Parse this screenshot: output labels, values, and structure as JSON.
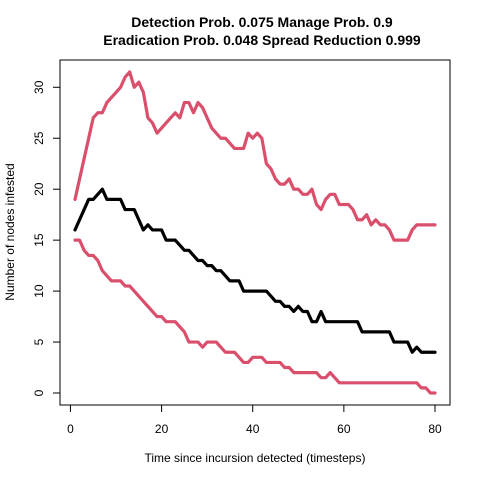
{
  "chart_data": {
    "type": "line",
    "title": [
      "Detection Prob. 0.075 Manage Prob. 0.9",
      "Eradication Prob. 0.048 Spread Reduction 0.999"
    ],
    "xlabel": "Time since incursion detected (timesteps)",
    "ylabel": "Number of nodes infested",
    "xlim": [
      1,
      80
    ],
    "ylim": [
      0,
      31.5
    ],
    "xticks": [
      0,
      20,
      40,
      60,
      80
    ],
    "yticks": [
      0,
      5,
      10,
      15,
      20,
      25,
      30
    ],
    "grid": false,
    "legend": "none",
    "series": [
      {
        "color": "#000000",
        "values": [
          16,
          17,
          18,
          19,
          19,
          19.5,
          20,
          19,
          19,
          19,
          19,
          18,
          18,
          18,
          17,
          16,
          16.5,
          16,
          16,
          16,
          15,
          15,
          15,
          14.5,
          14,
          14,
          13.5,
          13,
          13,
          12.5,
          12.5,
          12,
          12,
          11.5,
          11,
          11,
          11,
          10,
          10,
          10,
          10,
          10,
          10,
          9.5,
          9,
          9,
          8.5,
          8.5,
          8,
          8.5,
          8,
          8,
          7,
          7,
          8,
          7,
          7,
          7,
          7,
          7,
          7,
          7,
          7,
          6,
          6,
          6,
          6,
          6,
          6,
          6,
          5,
          5,
          5,
          5,
          4,
          4.5,
          4,
          4,
          4,
          4
        ]
      },
      {
        "color": "#D94F6C",
        "values": [
          19,
          21,
          23,
          25,
          27,
          27.5,
          27.5,
          28.5,
          29,
          29.5,
          30,
          31,
          31.5,
          30,
          30.5,
          29.5,
          27,
          26.5,
          25.5,
          26,
          26.5,
          27,
          27.5,
          27,
          28.5,
          28.5,
          27.5,
          28.5,
          28,
          27,
          26,
          25.5,
          25,
          25,
          24.5,
          24,
          24,
          24,
          25.5,
          25,
          25.5,
          25,
          22.5,
          22,
          21,
          20.5,
          20.5,
          21,
          20,
          20,
          19.5,
          19.5,
          20,
          18.5,
          18,
          19,
          19.5,
          19.5,
          18.5,
          18.5,
          18.5,
          18,
          17,
          17,
          17.5,
          16.5,
          17,
          16.5,
          16.5,
          16,
          15,
          15,
          15,
          15,
          16,
          16.5,
          16.5,
          16.5,
          16.5,
          16.5
        ]
      },
      {
        "color": "#D94F6C",
        "values": [
          15,
          15,
          14,
          13.5,
          13.5,
          13,
          12,
          11.5,
          11,
          11,
          11,
          10.5,
          10.5,
          10,
          9.5,
          9,
          8.5,
          8,
          7.5,
          7.5,
          7,
          7,
          7,
          6.5,
          6,
          5,
          5,
          5,
          4.5,
          5,
          5,
          5,
          4.5,
          4,
          4,
          4,
          3.5,
          3,
          3,
          3.5,
          3.5,
          3.5,
          3,
          3,
          3,
          3,
          2.5,
          2.5,
          2,
          2,
          2,
          2,
          2,
          2,
          1.5,
          1.5,
          2,
          1.5,
          1,
          1,
          1,
          1,
          1,
          1,
          1,
          1,
          1,
          1,
          1,
          1,
          1,
          1,
          1,
          1,
          1,
          1,
          0.5,
          0.5,
          0,
          0
        ]
      }
    ]
  }
}
